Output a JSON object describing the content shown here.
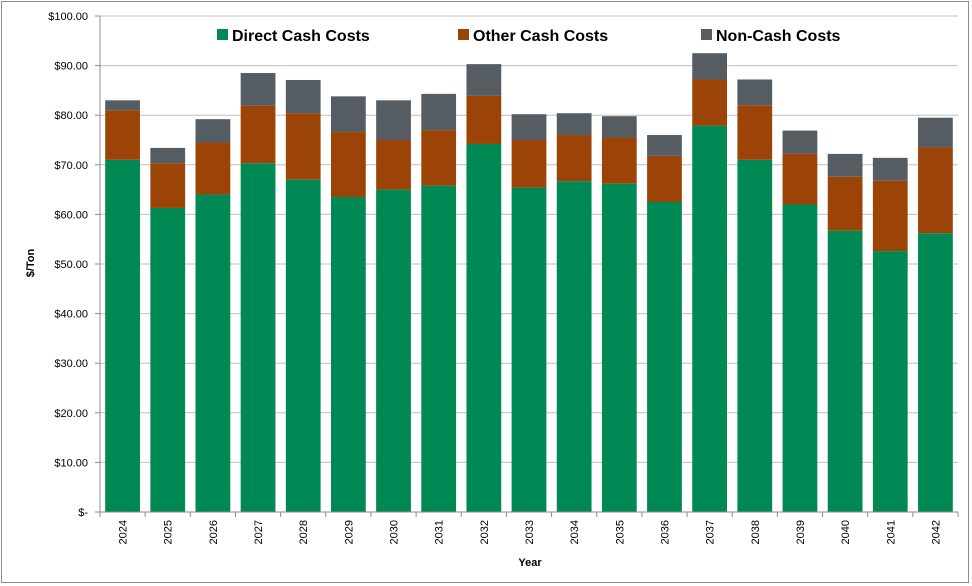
{
  "chart_data": {
    "type": "bar",
    "stacked": true,
    "categories": [
      "2024",
      "2025",
      "2026",
      "2027",
      "2028",
      "2029",
      "2030",
      "2031",
      "2032",
      "2033",
      "2034",
      "2035",
      "2036",
      "2037",
      "2038",
      "2039",
      "2040",
      "2041",
      "2042"
    ],
    "series": [
      {
        "name": "Direct Cash Costs",
        "color": "#008855",
        "values": [
          71.0,
          61.3,
          64.0,
          70.3,
          67.0,
          63.5,
          65.0,
          65.8,
          74.2,
          65.4,
          66.7,
          66.2,
          62.5,
          77.9,
          71.0,
          62.0,
          56.7,
          52.6,
          56.2
        ]
      },
      {
        "name": "Other Cash Costs",
        "color": "#9c4408",
        "values": [
          10.0,
          9.0,
          10.5,
          11.6,
          13.4,
          13.1,
          10.0,
          11.2,
          9.7,
          9.6,
          9.3,
          9.3,
          9.3,
          9.3,
          11.0,
          10.2,
          10.9,
          14.2,
          17.3
        ]
      },
      {
        "name": "Non-Cash Costs",
        "color": "#555d63",
        "values": [
          2.0,
          3.1,
          4.7,
          6.6,
          6.7,
          7.2,
          8.0,
          7.3,
          6.4,
          5.2,
          4.4,
          4.3,
          4.2,
          5.3,
          5.2,
          4.7,
          4.6,
          4.6,
          6.0
        ]
      }
    ],
    "title": "",
    "xlabel": "Year",
    "ylabel": "$/Ton",
    "ylim": [
      0,
      100
    ],
    "yticks": [
      0,
      10,
      20,
      30,
      40,
      50,
      60,
      70,
      80,
      90,
      100
    ],
    "ytick_labels": [
      "$-",
      "$10.00",
      "$20.00",
      "$30.00",
      "$40.00",
      "$50.00",
      "$60.00",
      "$70.00",
      "$80.00",
      "$90.00",
      "$100.00"
    ],
    "legend_position": "top",
    "grid": "horizontal"
  }
}
